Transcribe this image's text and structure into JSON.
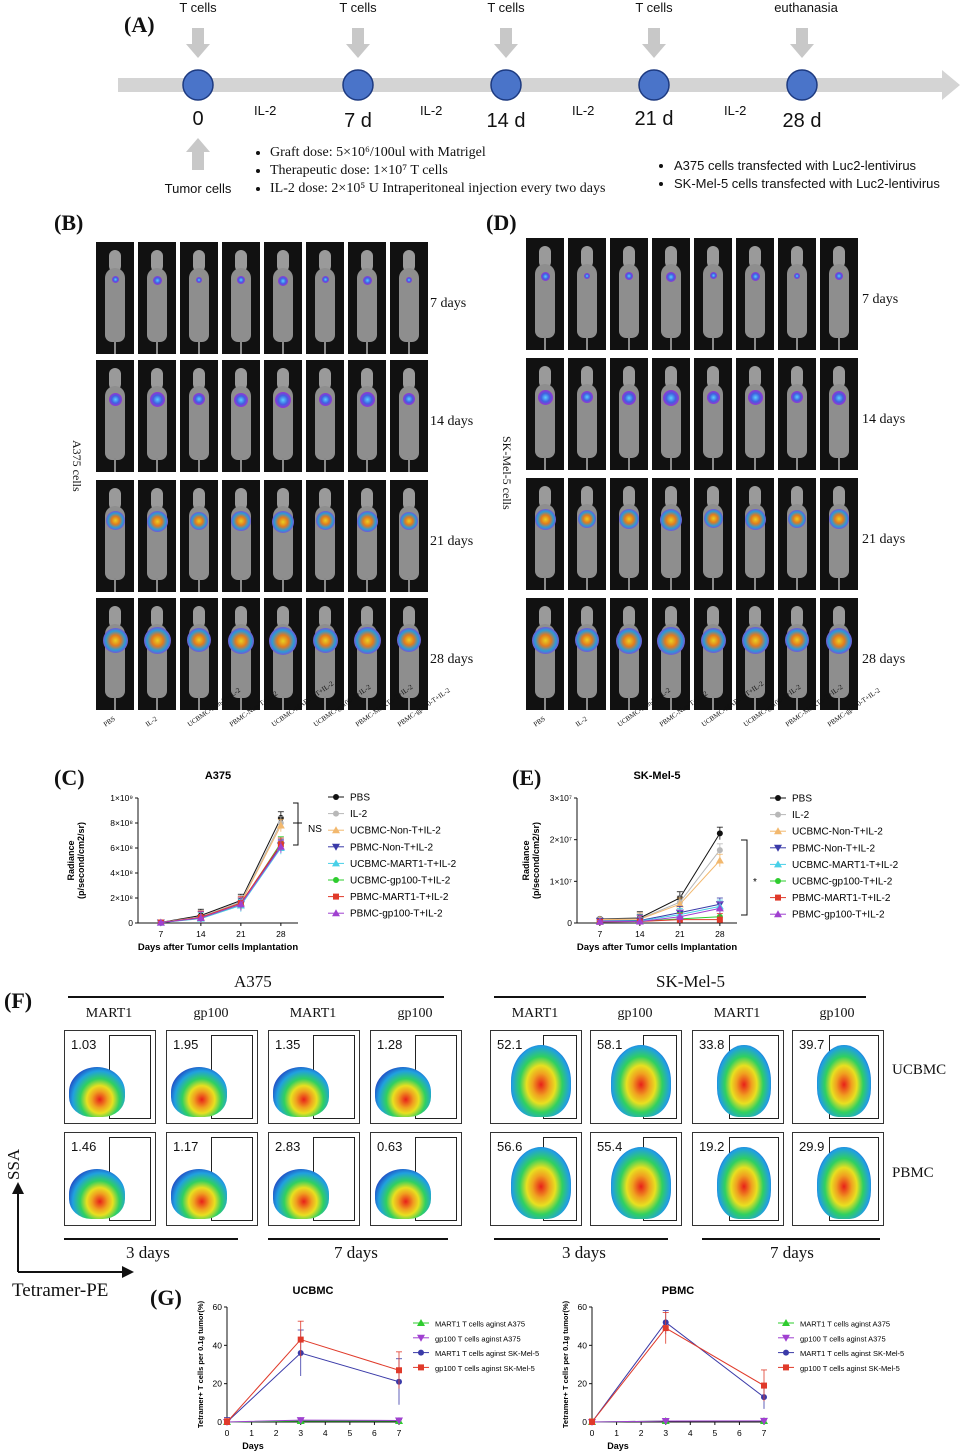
{
  "panels": {
    "A": "(A)",
    "B": "(B)",
    "C": "(C)",
    "D": "(D)",
    "E": "(E)",
    "F": "(F)",
    "G": "(G)"
  },
  "timeline": {
    "events": [
      {
        "top": "T cells",
        "day": "0",
        "bottom": "Tumor cells"
      },
      {
        "top": "T cells",
        "day": "7 d"
      },
      {
        "top": "T cells",
        "day": "14 d"
      },
      {
        "top": "T cells",
        "day": "21 d"
      },
      {
        "top": "euthanasia",
        "day": "28 d"
      }
    ],
    "il2": "IL-2",
    "bullets_left": [
      "Graft dose: 5×10⁶/100ul with Matrigel",
      "Therapeutic dose: 1×10⁷ T cells",
      "IL-2 dose: 2×10⁵ U Intraperitoneal injection every two days"
    ],
    "bullets_right": [
      "A375 cells transfected with Luc2-lentivirus",
      "SK-Mel-5 cells transfected with Luc2-lentivirus"
    ]
  },
  "imaging": {
    "days": [
      "7 days",
      "14 days",
      "21 days",
      "28 days"
    ],
    "left_label": "A375 cells",
    "right_label": "SK-Mel-5 cells",
    "groups": [
      "PBS",
      "IL-2",
      "UCBMC-Non-T+IL-2",
      "PBMC-Non-T+IL-2",
      "UCBMC-MART1-T+IL-2",
      "UCBMC-gp100-T+IL-2",
      "PBMC-MART1-T+IL-2",
      "PBMC-gp100-T+IL-2"
    ]
  },
  "legend_series": [
    "PBS",
    "IL-2",
    "UCBMC-Non-T+IL-2",
    "PBMC-Non-T+IL-2",
    "UCBMC-MART1-T+IL-2",
    "UCBMC-gp100-T+IL-2",
    "PBMC-MART1-T+IL-2",
    "PBMC-gp100-T+IL-2"
  ],
  "series_colors": [
    "#111111",
    "#b8b8b8",
    "#f2b86e",
    "#3a3aa8",
    "#48d0e8",
    "#2ecc2e",
    "#e03a2a",
    "#a040d0"
  ],
  "chart_data": [
    {
      "type": "line",
      "title": "A375",
      "xlabel": "Days after Tumor cells Implantation",
      "ylabel": "Radiance (p/second/cm2/sr)",
      "x": [
        7,
        14,
        21,
        28
      ],
      "ylim": [
        0,
        1000000000
      ],
      "yticks": [
        "0",
        "2×10⁸",
        "4×10⁸",
        "6×10⁸",
        "8×10⁸",
        "1×10⁹"
      ],
      "xticks": [
        "7",
        "14",
        "21",
        "28"
      ],
      "annotation": "NS",
      "series": [
        {
          "name": "PBS",
          "values": [
            5000000,
            60000000,
            180000000,
            840000000
          ]
        },
        {
          "name": "IL-2",
          "values": [
            5000000,
            50000000,
            170000000,
            800000000
          ]
        },
        {
          "name": "UCBMC-Non-T+IL-2",
          "values": [
            4000000,
            45000000,
            160000000,
            780000000
          ]
        },
        {
          "name": "PBMC-Non-T+IL-2",
          "values": [
            4000000,
            40000000,
            150000000,
            620000000
          ]
        },
        {
          "name": "UCBMC-MART1-T+IL-2",
          "values": [
            3000000,
            35000000,
            140000000,
            600000000
          ]
        },
        {
          "name": "UCBMC-gp100-T+IL-2",
          "values": [
            3000000,
            40000000,
            150000000,
            640000000
          ]
        },
        {
          "name": "PBMC-MART1-T+IL-2",
          "values": [
            4000000,
            45000000,
            160000000,
            630000000
          ]
        },
        {
          "name": "PBMC-gp100-T+IL-2",
          "values": [
            3000000,
            40000000,
            150000000,
            610000000
          ]
        }
      ]
    },
    {
      "type": "line",
      "title": "SK-Mel-5",
      "xlabel": "Days after Tumor cells Implantation",
      "ylabel": "Radiance (p/second/cm2/sr)",
      "x": [
        7,
        14,
        21,
        28
      ],
      "ylim": [
        0,
        30000000
      ],
      "yticks": [
        "0",
        "1×10⁷",
        "2×10⁷",
        "3×10⁷"
      ],
      "xticks": [
        "7",
        "14",
        "21",
        "28"
      ],
      "annotation": "*",
      "series": [
        {
          "name": "PBS",
          "values": [
            1000000,
            1200000,
            6000000,
            21500000
          ]
        },
        {
          "name": "IL-2",
          "values": [
            900000,
            1000000,
            5000000,
            17500000
          ]
        },
        {
          "name": "UCBMC-Non-T+IL-2",
          "values": [
            800000,
            900000,
            4500000,
            15000000
          ]
        },
        {
          "name": "PBMC-Non-T+IL-2",
          "values": [
            500000,
            600000,
            2500000,
            4500000
          ]
        },
        {
          "name": "UCBMC-MART1-T+IL-2",
          "values": [
            400000,
            500000,
            2000000,
            4000000
          ]
        },
        {
          "name": "UCBMC-gp100-T+IL-2",
          "values": [
            300000,
            400000,
            1000000,
            1500000
          ]
        },
        {
          "name": "PBMC-MART1-T+IL-2",
          "values": [
            300000,
            350000,
            800000,
            800000
          ]
        },
        {
          "name": "PBMC-gp100-T+IL-2",
          "values": [
            300000,
            350000,
            1500000,
            3500000
          ]
        }
      ]
    },
    {
      "type": "line",
      "title": "UCBMC",
      "xlabel": "Days",
      "ylabel": "Tetramer+ T cells per 0.1g tumor(%)",
      "x": [
        0,
        3,
        7
      ],
      "ylim": [
        0,
        60
      ],
      "yticks": [
        "0",
        "20",
        "40",
        "60"
      ],
      "xticks": [
        "0",
        "1",
        "2",
        "3",
        "4",
        "5",
        "6",
        "7"
      ],
      "series": [
        {
          "name": "MART1 T cells aginst A375",
          "values": [
            0,
            0.5,
            0.5
          ]
        },
        {
          "name": "gp100 T cells aginst A375",
          "values": [
            0,
            1,
            0.8
          ]
        },
        {
          "name": "MART1 T cells aginst SK-Mel-5",
          "values": [
            0,
            36,
            21
          ]
        },
        {
          "name": "gp100 T cells aginst SK-Mel-5",
          "values": [
            0,
            43,
            27
          ]
        }
      ]
    },
    {
      "type": "line",
      "title": "PBMC",
      "xlabel": "Days",
      "ylabel": "Tetramer+ T cells per 0.1g tumor(%)",
      "x": [
        0,
        3,
        7
      ],
      "ylim": [
        0,
        60
      ],
      "yticks": [
        "0",
        "20",
        "40",
        "60"
      ],
      "xticks": [
        "0",
        "1",
        "2",
        "3",
        "4",
        "5",
        "6",
        "7"
      ],
      "series": [
        {
          "name": "MART1 T cells aginst A375",
          "values": [
            0,
            0.5,
            0.5
          ]
        },
        {
          "name": "gp100 T cells aginst A375",
          "values": [
            0,
            0.5,
            0.6
          ]
        },
        {
          "name": "MART1 T cells aginst SK-Mel-5",
          "values": [
            0,
            52,
            13
          ]
        },
        {
          "name": "gp100 T cells aginst SK-Mel-5",
          "values": [
            0,
            49,
            19
          ]
        }
      ]
    }
  ],
  "g_colors": [
    "#2ecc2e",
    "#a040d0",
    "#3a3aa8",
    "#e03a2a"
  ],
  "flow": {
    "a375_title": "A375",
    "sk_title": "SK-Mel-5",
    "col_heads": [
      "MART1",
      "gp100",
      "MART1",
      "gp100"
    ],
    "row_labels": [
      "UCBMC",
      "PBMC"
    ],
    "bottom_labels": [
      "3 days",
      "7 days",
      "3 days",
      "7 days"
    ],
    "y_axis": "SSA",
    "x_axis": "Tetramer-PE",
    "a375_values": [
      [
        "1.03",
        "1.95",
        "1.35",
        "1.28"
      ],
      [
        "1.46",
        "1.17",
        "2.83",
        "0.63"
      ]
    ],
    "sk_values": [
      [
        "52.1",
        "58.1",
        "33.8",
        "39.7"
      ],
      [
        "56.6",
        "55.4",
        "19.2",
        "29.9"
      ]
    ]
  }
}
